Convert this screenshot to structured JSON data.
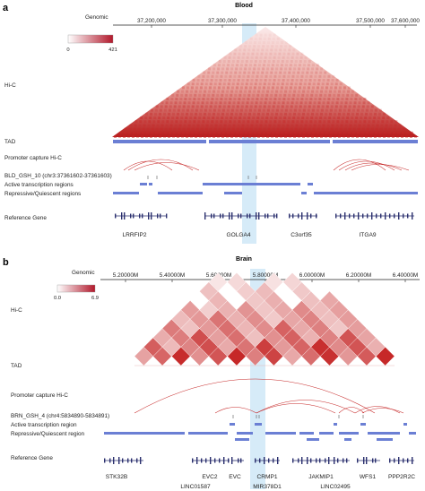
{
  "panels": [
    {
      "letter": "a",
      "title": "Blood",
      "genomic_label": "Genomic",
      "ticks": [
        "37,200,000",
        "37,300,000",
        "37,400,000",
        "37,500,000",
        "37,600,000"
      ],
      "colorbar": {
        "min": "0",
        "max": "421",
        "low_color": "#ffffff",
        "high_color": "#b2182b"
      },
      "track_labels": {
        "hic": "Hi-C",
        "tad": "TAD",
        "promoter": "Promoter capture Hi-C",
        "bait": "BLD_GSH_10 (chr3:37361602-37361603)",
        "active": "Active transcription regions",
        "repressive": "Repressive/Quiescent regions",
        "refgene": "Reference Gene"
      },
      "genes": [
        "LRRFIP2",
        "GOLGA4",
        "C3orf35",
        "ITGA9"
      ]
    },
    {
      "letter": "b",
      "title": "Brain",
      "genomic_label": "Genomic",
      "ticks": [
        "5.20000M",
        "5.40000M",
        "5.60000M",
        "5.80000M",
        "6.00000M",
        "6.20000M",
        "6.40000M"
      ],
      "colorbar": {
        "min": "0.0",
        "max": "6.9",
        "low_color": "#ffffff",
        "high_color": "#b2182b"
      },
      "track_labels": {
        "hic": "Hi-C",
        "tad": "TAD",
        "promoter": "Promoter capture Hi-C",
        "bait": "BRN_GSH_4 (chr4:5834890-5834891)",
        "active": "Active transcription region",
        "repressive": "Repressive/Quiescent region",
        "refgene": "Reference Gene"
      },
      "genes_top": [
        "STK32B",
        "EVC2",
        "EVC",
        "CRMP1",
        "JAKMIP1",
        "WFS1",
        "PPP2R2C"
      ],
      "genes_bottom": [
        "LINC01587",
        "MIR378D1",
        "LINC02495"
      ]
    }
  ],
  "colors": {
    "hic_red": "#c62828",
    "track_blue": "#6b7fd4",
    "gene_navy": "#2a2f6e",
    "highlight": "#cfe8f7"
  }
}
